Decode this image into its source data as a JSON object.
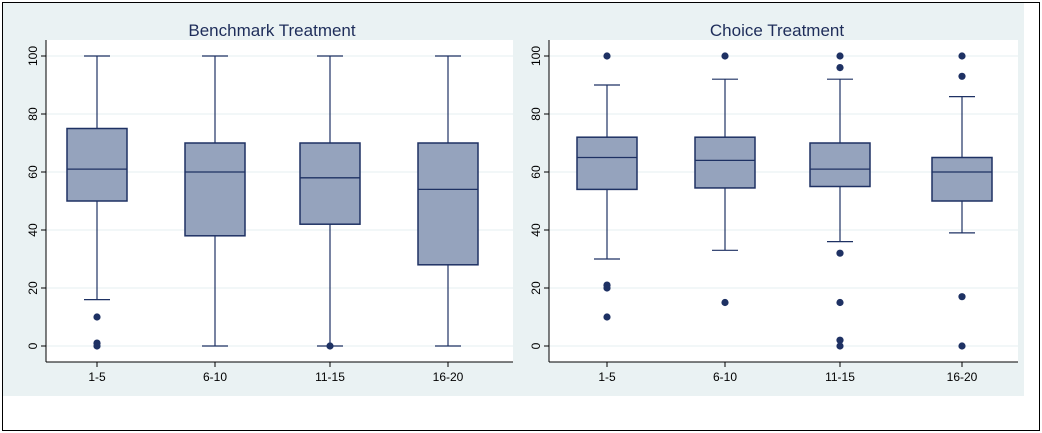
{
  "colors": {
    "box_fill": "#95a3bd",
    "box_stroke": "#1e3163",
    "outlier": "#1e3163",
    "grid": "#eaf2f3",
    "background": "#eaf2f3",
    "plot_area": "#ffffff"
  },
  "chart_data": [
    {
      "type": "box",
      "title": "Benchmark Treatment",
      "categories": [
        "1-5",
        "6-10",
        "11-15",
        "16-20"
      ],
      "ylim": [
        0,
        100
      ],
      "yticks": [
        0,
        20,
        40,
        60,
        80,
        100
      ],
      "ytick_labels": [
        "0",
        "20",
        "40",
        "60",
        "80",
        "100"
      ],
      "grid": true,
      "boxes": [
        {
          "category": "1-5",
          "whisker_low": 16,
          "q1": 50,
          "median": 61,
          "q3": 75,
          "whisker_high": 100,
          "outliers": [
            10,
            1,
            0
          ]
        },
        {
          "category": "6-10",
          "whisker_low": 0,
          "q1": 38,
          "median": 60,
          "q3": 70,
          "whisker_high": 100,
          "outliers": []
        },
        {
          "category": "11-15",
          "whisker_low": 0,
          "q1": 42,
          "median": 58,
          "q3": 70,
          "whisker_high": 100,
          "outliers": [
            0
          ]
        },
        {
          "category": "16-20",
          "whisker_low": 0,
          "q1": 28,
          "median": 54,
          "q3": 70,
          "whisker_high": 100,
          "outliers": []
        }
      ]
    },
    {
      "type": "box",
      "title": "Choice Treatment",
      "categories": [
        "1-5",
        "6-10",
        "11-15",
        "16-20"
      ],
      "ylim": [
        0,
        100
      ],
      "yticks": [
        0,
        20,
        40,
        60,
        80,
        100
      ],
      "ytick_labels": [
        "0",
        "20",
        "40",
        "60",
        "80",
        "100"
      ],
      "grid": true,
      "boxes": [
        {
          "category": "1-5",
          "whisker_low": 30,
          "q1": 54,
          "median": 65,
          "q3": 72,
          "whisker_high": 90,
          "outliers": [
            100,
            21,
            20,
            10
          ]
        },
        {
          "category": "6-10",
          "whisker_low": 33,
          "q1": 54.5,
          "median": 64,
          "q3": 72,
          "whisker_high": 92,
          "outliers": [
            100,
            15
          ]
        },
        {
          "category": "11-15",
          "whisker_low": 36,
          "q1": 55,
          "median": 61,
          "q3": 70,
          "whisker_high": 92,
          "outliers": [
            100,
            96,
            32,
            15,
            2,
            0
          ]
        },
        {
          "category": "16-20",
          "whisker_low": 39,
          "q1": 50,
          "median": 60,
          "q3": 65,
          "whisker_high": 86,
          "outliers": [
            100,
            93,
            17,
            0
          ]
        }
      ]
    }
  ]
}
